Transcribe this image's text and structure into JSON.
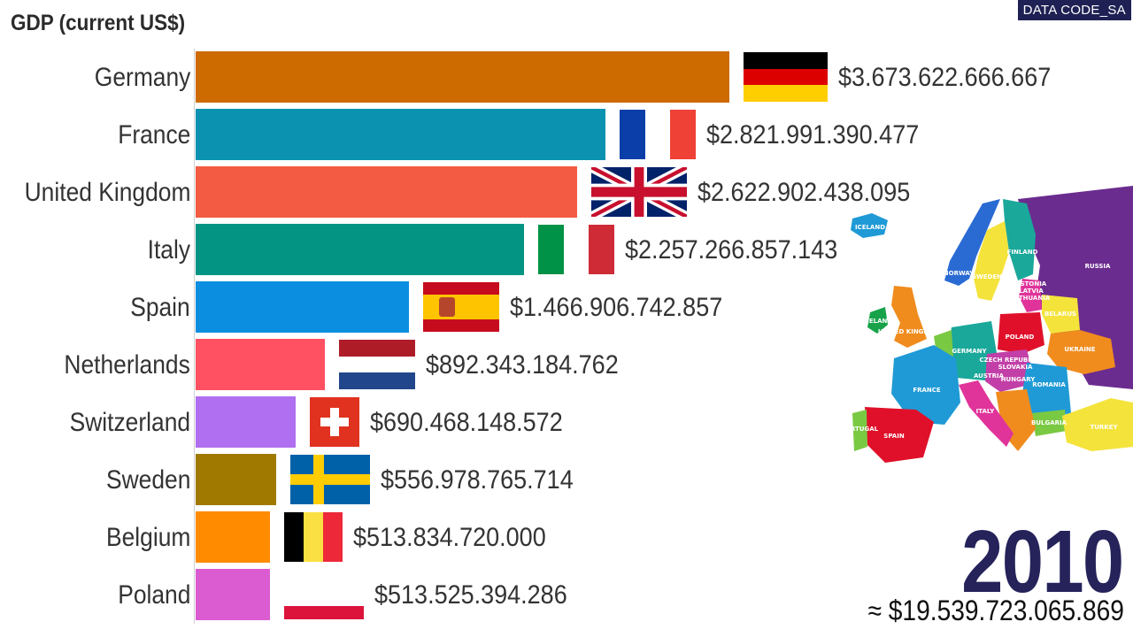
{
  "chart_data": {
    "type": "bar",
    "orientation": "horizontal",
    "title": "GDP (current US$)",
    "categories": [
      "Germany",
      "France",
      "United Kingdom",
      "Italy",
      "Spain",
      "Netherlands",
      "Switzerland",
      "Sweden",
      "Belgium",
      "Poland"
    ],
    "values": [
      3673622666667,
      2821991390477,
      2622902438095,
      2257266857143,
      1466906742857,
      892343184762,
      690468148572,
      556978765714,
      513834720000,
      513525394286
    ],
    "value_labels": [
      "$3.673.622.666.667",
      "$2.821.991.390.477",
      "$2.622.902.438.095",
      "$2.257.266.857.143",
      "$1.466.906.742.857",
      "$892.343.184.762",
      "$690.468.148.572",
      "$556.978.765.714",
      "$513.834.720.000",
      "$513.525.394.286"
    ],
    "colors": [
      "#cd6b00",
      "#0a92b0",
      "#f35b42",
      "#039483",
      "#0b8ee0",
      "#ff5161",
      "#b06ff0",
      "#a07a00",
      "#ff8c00",
      "#db5bd0"
    ],
    "flags": [
      "germany",
      "france",
      "united-kingdom",
      "italy",
      "spain",
      "netherlands",
      "switzerland",
      "sweden",
      "belgium",
      "poland"
    ],
    "grid": false,
    "legend": "none"
  },
  "brand": "DATA CODE_SA",
  "year": "2010",
  "total": "≈ $19.539.723.065.869",
  "map": {
    "icon": "europe-map-icon",
    "labels": [
      "ICELAND",
      "NORWAY",
      "SWEDEN",
      "FINLAND",
      "RUSSIA",
      "ESTONIA",
      "LATVIA",
      "LITHUANIA",
      "BELARUS",
      "POLAND",
      "UKRAINE",
      "GERMANY",
      "UNITED KINGDOM",
      "IRELAND",
      "FRANCE",
      "CZECH REPUBLIC",
      "SLOVAKIA",
      "AUSTRIA",
      "HUNGARY",
      "ROMANIA",
      "BULGARIA",
      "ITALY",
      "SPAIN",
      "PORTUGAL",
      "TURKEY"
    ]
  }
}
